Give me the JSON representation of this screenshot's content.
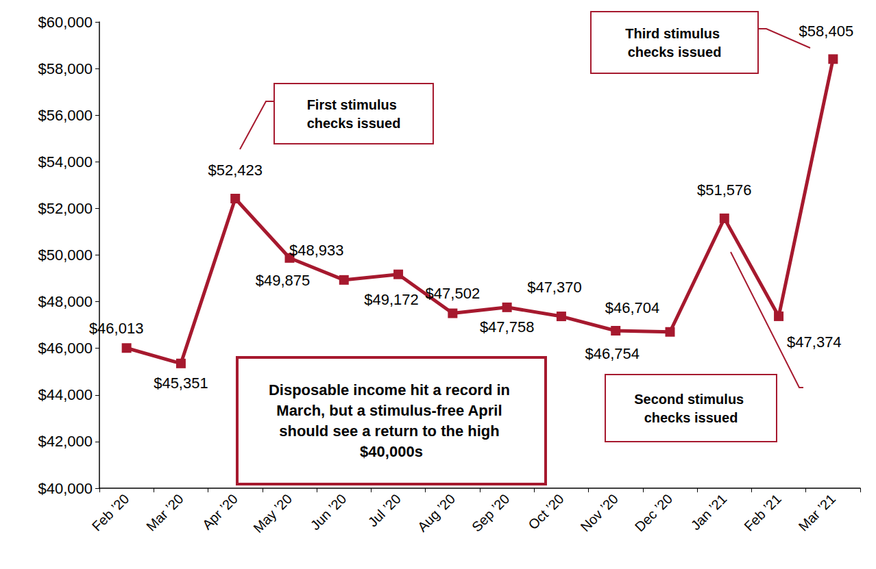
{
  "chart_data": {
    "type": "line",
    "categories": [
      "Feb ’20",
      "Mar ’20",
      "Apr ’20",
      "May ’20",
      "Jun ’20",
      "Jul ’20",
      "Aug ’20",
      "Sep ’20",
      "Oct ’20",
      "Nov ’20",
      "Dec ’20",
      "Jan ’21",
      "Feb ’21",
      "Mar ’21"
    ],
    "values": [
      46013,
      45351,
      52423,
      49875,
      48933,
      49172,
      47502,
      47758,
      47370,
      46754,
      46704,
      51576,
      47374,
      58405
    ],
    "value_labels": [
      "$46,013",
      "$45,351",
      "$52,423",
      "$49,875",
      "$48,933",
      "$49,172",
      "$47,502",
      "$47,758",
      "$47,370",
      "$46,754",
      "$46,704",
      "$51,576",
      "$47,374",
      "$58,405"
    ],
    "color": "#a6192e",
    "marker": "square",
    "line_style": "solid",
    "data_labels": true,
    "grid": false,
    "ylim": [
      40000,
      60000
    ],
    "yticks": [
      {
        "value": 40000,
        "label": "$40,000"
      },
      {
        "value": 42000,
        "label": "$42,000"
      },
      {
        "value": 44000,
        "label": "$44,000"
      },
      {
        "value": 46000,
        "label": "$46,000"
      },
      {
        "value": 48000,
        "label": "$48,000"
      },
      {
        "value": 50000,
        "label": "$50,000"
      },
      {
        "value": 52000,
        "label": "$52,000"
      },
      {
        "value": 54000,
        "label": "$54,000"
      },
      {
        "value": 56000,
        "label": "$56,000"
      },
      {
        "value": 58000,
        "label": "$58,000"
      },
      {
        "value": 60000,
        "label": "$60,000"
      }
    ],
    "annotations": [
      "First stimulus checks issued",
      "Second stimulus checks issued",
      "Third stimulus checks issued",
      "Disposable income hit a record in March, but a stimulus-free April should see a return to the high $40,000s"
    ]
  }
}
